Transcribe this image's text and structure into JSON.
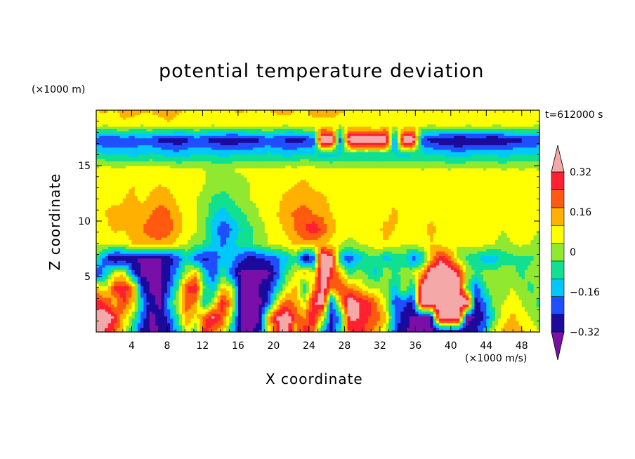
{
  "chart_data": {
    "type": "heatmap",
    "title": "potential temperature deviation",
    "xlabel": "X coordinate",
    "ylabel": "Z coordinate",
    "x_unit": "(×1000 m/s)",
    "y_unit": "(×1000 m)",
    "time_label": "t=612000 s",
    "xlim": [
      0,
      50
    ],
    "ylim": [
      0,
      20
    ],
    "x_ticks": [
      4,
      8,
      12,
      16,
      20,
      24,
      28,
      32,
      36,
      40,
      44,
      48
    ],
    "y_ticks": [
      5,
      10,
      15
    ],
    "colorbar": {
      "levels": [
        -0.4,
        -0.32,
        -0.24,
        -0.16,
        -0.08,
        0,
        0.08,
        0.16,
        0.24,
        0.32,
        0.4
      ],
      "tick_labels": [
        "0.32",
        "0.16",
        "0",
        "−0.16",
        "−0.32"
      ],
      "tick_values": [
        0.32,
        0.16,
        0,
        -0.16,
        -0.32
      ],
      "colors": [
        "#7a0fa8",
        "#1b0a9c",
        "#1f4fff",
        "#00c8ff",
        "#10e090",
        "#90e830",
        "#ffff00",
        "#ffb000",
        "#ff5a10",
        "#ff2030",
        "#f5a8a8"
      ],
      "extend": "both"
    },
    "z_grid": [
      [
        0.42,
        0.3,
        0.2,
        0.05,
        -0.15,
        -0.35,
        -0.42,
        -0.4,
        -0.36,
        -0.2,
        0.05,
        -0.1,
        0.3,
        0.15,
        0.1,
        -0.2,
        -0.42,
        -0.42,
        -0.36,
        0.0,
        0.25,
        0.42,
        0.1,
        0.3,
        0.2,
        -0.2,
        -0.38,
        -0.12,
        0.25,
        0.3,
        0.2,
        0.1,
        0.0,
        -0.3,
        -0.4,
        -0.42,
        -0.41,
        -0.42,
        -0.41,
        -0.42,
        -0.4,
        -0.38,
        -0.32,
        -0.2,
        0.05,
        0.1,
        0.15,
        0.1,
        0.05,
        0.0
      ],
      [
        0.35,
        0.42,
        0.3,
        0.1,
        -0.05,
        -0.25,
        -0.42,
        -0.38,
        -0.3,
        -0.1,
        0.15,
        0.05,
        0.2,
        0.35,
        0.2,
        -0.05,
        -0.42,
        -0.41,
        -0.42,
        0.1,
        0.32,
        0.42,
        0.2,
        0.15,
        0.3,
        0.05,
        -0.35,
        -0.2,
        0.35,
        0.32,
        0.25,
        0.2,
        0.1,
        -0.25,
        -0.35,
        -0.42,
        -0.42,
        -0.42,
        0.42,
        0.42,
        0.42,
        -0.42,
        -0.4,
        -0.3,
        -0.1,
        0.05,
        0.1,
        0.05,
        0.0,
        -0.05
      ],
      [
        0.3,
        0.25,
        0.1,
        0.25,
        0.1,
        -0.2,
        -0.36,
        -0.42,
        -0.2,
        0.0,
        0.2,
        0.15,
        -0.2,
        0.0,
        0.3,
        0.1,
        -0.42,
        -0.42,
        -0.42,
        -0.3,
        0.05,
        0.2,
        0.15,
        0.0,
        0.32,
        0.35,
        -0.3,
        0.1,
        0.42,
        0.32,
        0.3,
        0.15,
        0.0,
        -0.3,
        -0.3,
        -0.35,
        0.42,
        0.42,
        0.42,
        0.42,
        0.42,
        0.42,
        -0.35,
        -0.25,
        -0.05,
        0.0,
        0.05,
        0.0,
        -0.05,
        -0.1
      ],
      [
        0.1,
        0.0,
        0.25,
        0.3,
        0.2,
        -0.3,
        -0.42,
        -0.42,
        -0.3,
        -0.1,
        0.25,
        0.3,
        -0.1,
        -0.2,
        0.1,
        0.0,
        -0.42,
        -0.42,
        -0.4,
        -0.35,
        -0.2,
        0.0,
        0.1,
        -0.15,
        0.1,
        0.42,
        0.15,
        0.25,
        0.15,
        0.1,
        0.0,
        0.0,
        -0.05,
        -0.2,
        0.0,
        -0.2,
        0.42,
        0.42,
        0.42,
        0.42,
        0.42,
        -0.1,
        -0.3,
        -0.1,
        0.0,
        -0.05,
        0.0,
        -0.05,
        -0.1,
        -0.05
      ],
      [
        -0.35,
        -0.2,
        0.0,
        0.05,
        -0.3,
        -0.42,
        -0.42,
        -0.42,
        -0.35,
        -0.2,
        0.0,
        0.1,
        -0.2,
        -0.3,
        -0.1,
        -0.3,
        -0.42,
        -0.42,
        -0.42,
        -0.42,
        -0.3,
        -0.1,
        0.0,
        0.1,
        0.0,
        0.42,
        0.3,
        0.1,
        -0.1,
        -0.05,
        -0.1,
        -0.2,
        0.0,
        -0.1,
        -0.05,
        0.0,
        0.1,
        0.42,
        0.42,
        0.42,
        0.3,
        0.0,
        -0.1,
        -0.05,
        -0.05,
        0.0,
        -0.05,
        -0.1,
        -0.05,
        0.0
      ],
      [
        -0.1,
        -0.3,
        -0.42,
        -0.42,
        -0.36,
        -0.42,
        -0.42,
        -0.42,
        -0.36,
        -0.3,
        -0.15,
        -0.3,
        -0.34,
        -0.3,
        -0.2,
        -0.2,
        -0.3,
        -0.35,
        -0.34,
        -0.3,
        -0.25,
        -0.2,
        -0.1,
        -0.42,
        -0.3,
        0.42,
        0.35,
        -0.2,
        -0.3,
        -0.2,
        -0.1,
        -0.1,
        -0.2,
        -0.15,
        -0.1,
        -0.3,
        -0.2,
        0.1,
        0.3,
        0.2,
        0.0,
        -0.1,
        -0.15,
        -0.2,
        -0.2,
        -0.15,
        -0.1,
        -0.1,
        -0.1,
        -0.05
      ],
      [
        0.0,
        0.05,
        0.02,
        0.05,
        0.08,
        0.1,
        0.12,
        0.14,
        0.1,
        0.05,
        0.0,
        -0.05,
        -0.1,
        -0.18,
        -0.26,
        -0.18,
        -0.12,
        -0.1,
        -0.05,
        0.0,
        0.02,
        0.05,
        0.1,
        0.14,
        0.12,
        0.1,
        0.05,
        0.0,
        -0.02,
        0.0,
        0.02,
        0.05,
        0.08,
        0.05,
        0.0,
        0.02,
        0.05,
        0.08,
        0.05,
        0.02,
        0.0,
        0.02,
        0.05,
        0.02,
        0.0,
        -0.02,
        0.0,
        0.02,
        0.0,
        -0.02
      ],
      [
        0.02,
        0.05,
        0.1,
        0.08,
        0.12,
        0.16,
        0.2,
        0.24,
        0.2,
        0.12,
        0.05,
        0.02,
        -0.05,
        -0.2,
        -0.3,
        -0.24,
        -0.15,
        -0.1,
        -0.05,
        0.02,
        0.05,
        0.1,
        0.16,
        0.24,
        0.3,
        0.22,
        0.12,
        0.05,
        0.02,
        0.05,
        0.02,
        0.06,
        0.1,
        0.08,
        0.05,
        0.02,
        0.05,
        0.1,
        0.06,
        0.02,
        0.0,
        0.05,
        0.08,
        0.05,
        0.02,
        0.0,
        0.02,
        0.05,
        0.02,
        0.0
      ],
      [
        0.05,
        0.08,
        0.12,
        0.1,
        0.15,
        0.12,
        0.16,
        0.2,
        0.18,
        0.1,
        0.05,
        0.0,
        -0.05,
        -0.16,
        -0.2,
        -0.14,
        -0.1,
        -0.05,
        0.0,
        0.05,
        0.08,
        0.12,
        0.18,
        0.2,
        0.16,
        0.14,
        0.08,
        0.05,
        0.02,
        0.06,
        0.05,
        0.08,
        0.06,
        0.1,
        0.05,
        0.06,
        0.08,
        0.06,
        0.05,
        0.02,
        0.05,
        0.06,
        0.04,
        0.02,
        0.05,
        0.02,
        0.0,
        0.02,
        0.04,
        0.02
      ],
      [
        0.04,
        0.06,
        0.05,
        0.08,
        0.1,
        0.06,
        0.1,
        0.14,
        0.12,
        0.06,
        0.02,
        0.0,
        -0.02,
        -0.1,
        -0.12,
        -0.08,
        -0.04,
        0.0,
        0.02,
        0.05,
        0.06,
        0.1,
        0.12,
        0.14,
        0.12,
        0.1,
        0.06,
        0.04,
        0.02,
        0.04,
        0.05,
        0.06,
        0.04,
        0.06,
        0.04,
        0.05,
        0.04,
        0.02,
        0.04,
        0.02,
        0.03,
        0.04,
        0.02,
        0.01,
        0.02,
        0.01,
        0.0,
        0.02,
        0.02,
        0.01
      ],
      [
        0.05,
        0.04,
        0.06,
        0.05,
        0.08,
        0.05,
        0.06,
        0.08,
        0.06,
        0.04,
        0.03,
        0.02,
        0.0,
        -0.02,
        -0.05,
        -0.04,
        -0.02,
        0.0,
        0.02,
        0.04,
        0.05,
        0.06,
        0.08,
        0.1,
        0.06,
        0.05,
        0.04,
        0.03,
        0.02,
        0.03,
        0.04,
        0.05,
        0.03,
        0.02,
        0.03,
        0.04,
        0.02,
        0.01,
        0.02,
        0.01,
        0.02,
        0.03,
        0.02,
        0.01,
        0.01,
        0.0,
        0.01,
        0.02,
        0.01,
        0.0
      ],
      [
        0.02,
        0.04,
        0.02,
        0.03,
        0.05,
        0.04,
        0.03,
        0.05,
        0.04,
        0.02,
        0.03,
        0.01,
        0.0,
        -0.01,
        -0.02,
        0.0,
        0.01,
        0.02,
        0.01,
        0.03,
        0.02,
        0.04,
        0.03,
        0.05,
        0.04,
        0.02,
        0.03,
        0.01,
        0.02,
        0.03,
        0.01,
        0.02,
        0.03,
        0.01,
        0.02,
        0.01,
        0.0,
        0.02,
        0.01,
        0.0,
        0.01,
        0.02,
        0.01,
        0.0,
        0.01,
        0.0,
        0.01,
        0.0,
        0.01,
        0.0
      ],
      [
        -0.12,
        -0.15,
        -0.14,
        -0.16,
        -0.18,
        -0.16,
        -0.14,
        -0.16,
        -0.18,
        -0.2,
        -0.18,
        -0.16,
        -0.14,
        -0.16,
        -0.18,
        -0.16,
        -0.14,
        -0.16,
        -0.15,
        -0.14,
        -0.16,
        -0.18,
        -0.16,
        -0.14,
        -0.16,
        -0.18,
        -0.2,
        -0.16,
        -0.14,
        -0.16,
        -0.15,
        -0.16,
        -0.14,
        -0.16,
        -0.18,
        -0.16,
        -0.14,
        -0.15,
        -0.16,
        -0.18,
        -0.2,
        -0.18,
        -0.16,
        -0.15,
        -0.16,
        -0.18,
        -0.16,
        -0.14,
        -0.16,
        -0.15
      ],
      [
        -0.3,
        -0.32,
        -0.34,
        -0.3,
        -0.32,
        -0.28,
        -0.3,
        -0.34,
        -0.36,
        -0.38,
        -0.34,
        -0.3,
        -0.32,
        -0.36,
        -0.38,
        -0.4,
        -0.38,
        -0.36,
        -0.34,
        -0.3,
        -0.32,
        -0.34,
        -0.36,
        -0.34,
        -0.3,
        0.42,
        0.42,
        -0.3,
        0.42,
        0.42,
        0.42,
        0.42,
        0.42,
        -0.3,
        0.42,
        0.42,
        -0.3,
        -0.35,
        -0.38,
        -0.4,
        -0.42,
        -0.4,
        -0.38,
        -0.4,
        -0.42,
        -0.38,
        -0.36,
        -0.34,
        -0.32,
        -0.3
      ],
      [
        0.02,
        0.0,
        0.03,
        0.05,
        0.02,
        0.0,
        0.04,
        0.02,
        0.05,
        0.03,
        0.01,
        0.04,
        0.02,
        0.0,
        0.03,
        0.01,
        0.02,
        0.04,
        0.03,
        0.05,
        0.02,
        0.0,
        0.03,
        0.05,
        0.06,
        0.04,
        0.02,
        0.0,
        0.03,
        0.01,
        0.02,
        0.0,
        0.04,
        0.02,
        0.01,
        0.03,
        0.02,
        0.0,
        0.01,
        0.03,
        0.02,
        0.0,
        0.01,
        0.02,
        0.0,
        0.01,
        0.03,
        0.02,
        0.01,
        0.0
      ],
      [
        0.08,
        0.1,
        0.06,
        0.12,
        0.14,
        0.1,
        0.08,
        0.12,
        0.16,
        0.1,
        0.06,
        0.08,
        0.04,
        0.02,
        0.05,
        0.08,
        0.1,
        0.06,
        0.04,
        0.08,
        0.1,
        0.12,
        0.08,
        0.06,
        0.1,
        0.12,
        0.14,
        0.1,
        0.06,
        0.04,
        0.06,
        0.05,
        0.08,
        0.06,
        0.04,
        0.05,
        0.08,
        0.06,
        0.04,
        0.02,
        0.04,
        0.06,
        0.05,
        0.03,
        0.04,
        0.02,
        0.03,
        0.05,
        0.04,
        0.02
      ]
    ]
  }
}
